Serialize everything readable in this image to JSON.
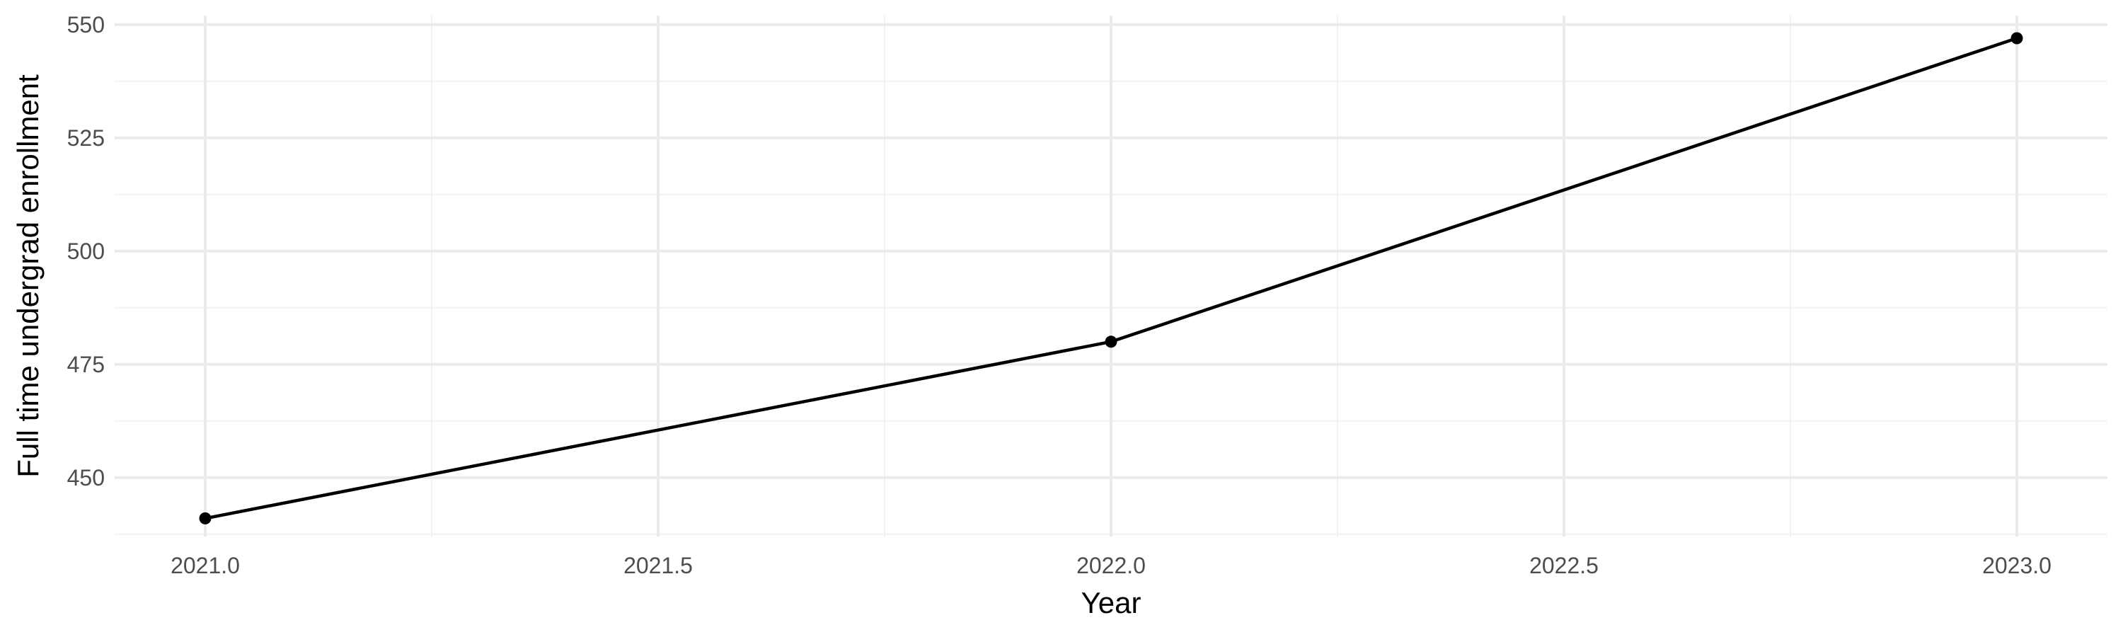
{
  "chart_data": {
    "type": "line",
    "title": "",
    "xlabel": "Year",
    "ylabel": "Full time undergrad enrollment",
    "x": [
      2021.0,
      2022.0,
      2023.0
    ],
    "series": [
      {
        "values": [
          441,
          480,
          547
        ]
      }
    ],
    "xlim": [
      2020.9,
      2023.1
    ],
    "ylim": [
      437,
      552
    ],
    "x_ticks": [
      "2021.0",
      "2021.5",
      "2022.0",
      "2022.5",
      "2023.0"
    ],
    "y_ticks": [
      "450",
      "475",
      "500",
      "525",
      "550"
    ],
    "grid": true,
    "legend": "none",
    "colors": {
      "line": "#000000",
      "grid_major": "#ebebeb",
      "grid_minor": "#f2f2f2",
      "tick_text": "#4d4d4d"
    }
  }
}
